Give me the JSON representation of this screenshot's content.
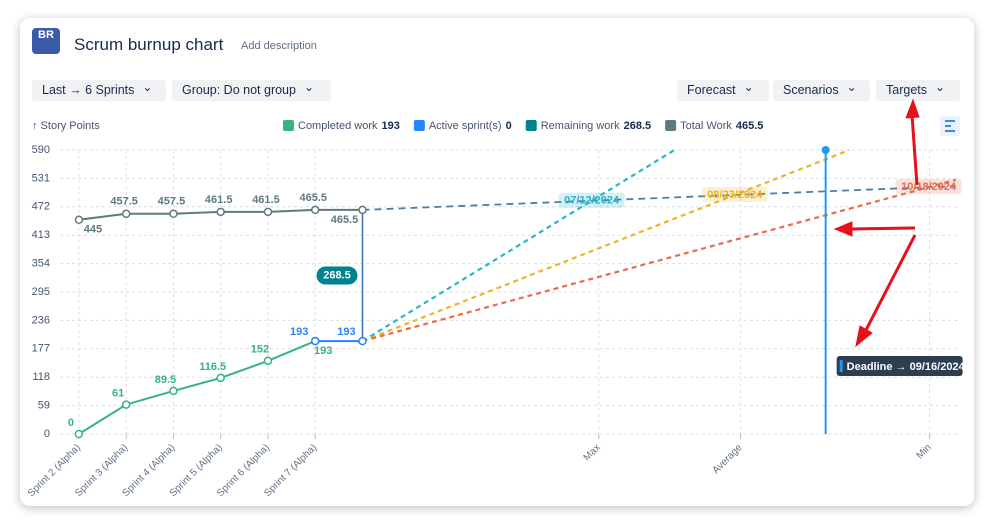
{
  "header": {
    "logo": "BR",
    "title": "Scrum burnup chart",
    "description": "Add description"
  },
  "toolbar": {
    "left": [
      "Last → 6 Sprints",
      "Group: Do not group"
    ],
    "right": [
      "Forecast",
      "Scenarios",
      "Targets"
    ]
  },
  "chart_data": {
    "type": "line",
    "y_label": "↑ Story Points",
    "legend": [
      {
        "name": "Completed work",
        "value": 193,
        "color": "#36b37e"
      },
      {
        "name": "Active sprint(s)",
        "value": 0,
        "color": "#2684ff"
      },
      {
        "name": "Remaining work",
        "value": 268.5,
        "color": "#00838f"
      },
      {
        "name": "Total Work",
        "value": 465.5,
        "color": "#5e7a7e"
      }
    ],
    "series": [
      {
        "name": "Completed work",
        "color": "#36b37e",
        "x": [
          0,
          1,
          2,
          3,
          4,
          5
        ],
        "values": [
          0,
          61,
          89.5,
          116.5,
          152,
          193
        ]
      },
      {
        "name": "Active sprint(s)",
        "color": "#2684ff",
        "x": [
          5,
          6
        ],
        "values": [
          193,
          193
        ]
      },
      {
        "name": "Total Work",
        "color": "#5e7a7e",
        "x": [
          0,
          1,
          2,
          3,
          4,
          5,
          6
        ],
        "values": [
          445,
          457.5,
          457.5,
          461.5,
          461.5,
          465.5,
          465.5
        ]
      }
    ],
    "forecasts": [
      {
        "label": "07/12/2024",
        "color": "#2bb5c8",
        "x": [
          6,
          12.6
        ],
        "values": [
          193,
          590
        ]
      },
      {
        "label": "08/23/2024",
        "color": "#f0b323",
        "x": [
          6,
          16.3
        ],
        "values": [
          193,
          590
        ]
      },
      {
        "label": "10/18/2024",
        "color": "#ec6a4c",
        "x": [
          6,
          18.55
        ],
        "values": [
          193,
          528
        ]
      }
    ],
    "total_forecast": {
      "color": "#4a7fa7",
      "x": [
        6,
        18.55
      ],
      "values": [
        465.5,
        515
      ]
    },
    "deadline": {
      "x": 15.8,
      "label": "Deadline → 09/16/2024",
      "color": "#1e9bf0"
    },
    "xlim": [
      -0.4,
      18.6
    ],
    "xticks": [
      {
        "value": 0,
        "label": "Sprint 2 (Alpha)"
      },
      {
        "value": 1,
        "label": "Sprint 3 (Alpha)"
      },
      {
        "value": 2,
        "label": "Sprint 4 (Alpha)"
      },
      {
        "value": 3,
        "label": "Sprint 5 (Alpha)"
      },
      {
        "value": 4,
        "label": "Sprint 6 (Alpha)"
      },
      {
        "value": 5,
        "label": "Sprint 7 (Alpha)"
      },
      {
        "value": 11,
        "label": "Max"
      },
      {
        "value": 14,
        "label": "Average"
      },
      {
        "value": 18,
        "label": "Min"
      }
    ],
    "ylim": [
      0,
      590
    ],
    "yticks": [
      0,
      59,
      118,
      177,
      236,
      295,
      354,
      413,
      472,
      531,
      590
    ],
    "grid": true
  }
}
